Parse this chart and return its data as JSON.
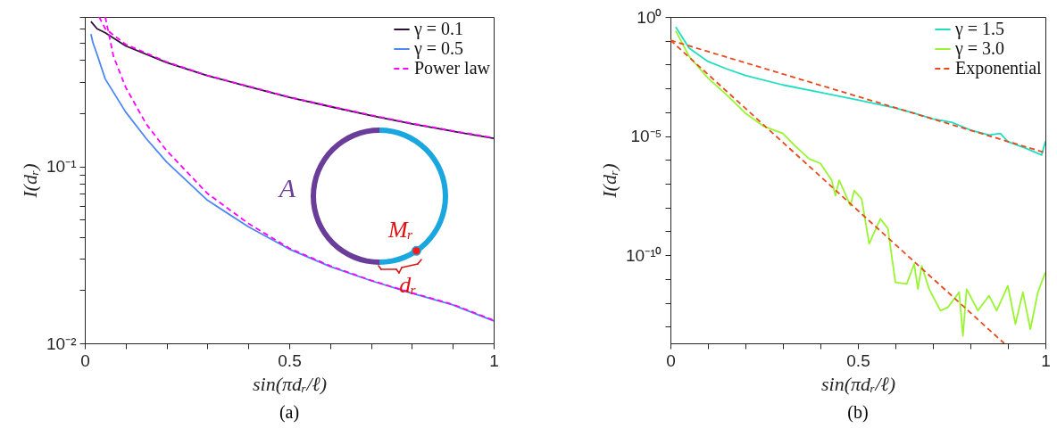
{
  "chart_data": [
    {
      "type": "line",
      "title": "(a)",
      "xlabel": "sin(πdᵣ/ℓ)",
      "ylabel": "I(dᵣ)",
      "log": true,
      "legend": "top right",
      "xlim": [
        0,
        1
      ],
      "ylim": [
        0.01,
        0.7
      ],
      "xticks": [
        0,
        {
          "value": 0.1,
          "label": null
        },
        {
          "value": 0.2,
          "label": null
        },
        {
          "value": 0.3,
          "label": null
        },
        {
          "value": 0.4,
          "label": null
        },
        0.5,
        {
          "value": 0.6,
          "label": null
        },
        {
          "value": 0.7,
          "label": null
        },
        {
          "value": 0.8,
          "label": null
        },
        {
          "value": 0.9,
          "label": null
        },
        1
      ],
      "yticks": [
        {
          "value": 0.01,
          "label": "10⁻²"
        },
        {
          "value": 0.02,
          "label": null
        },
        {
          "value": 0.03,
          "label": null
        },
        {
          "value": 0.04,
          "label": null
        },
        {
          "value": 0.05,
          "label": null
        },
        {
          "value": 0.06,
          "label": null
        },
        {
          "value": 0.07,
          "label": null
        },
        {
          "value": 0.08,
          "label": null
        },
        {
          "value": 0.09,
          "label": null
        },
        {
          "value": 0.1,
          "label": "10⁻¹"
        },
        {
          "value": 0.2,
          "label": null
        },
        {
          "value": 0.3,
          "label": null
        },
        {
          "value": 0.4,
          "label": null
        },
        {
          "value": 0.5,
          "label": null
        },
        {
          "value": 0.6,
          "label": null
        },
        {
          "value": 0.7,
          "label": null
        }
      ],
      "annotations": [
        "A",
        "Mᵣ",
        "dᵣ"
      ],
      "series": [
        {
          "name": "γ = 0.1",
          "color": "#2b1137",
          "line_style": "solid",
          "x": [
            0.015,
            0.03,
            0.05,
            0.1,
            0.2,
            0.3,
            0.4,
            0.5,
            0.6,
            0.7,
            0.8,
            0.9,
            1.0
          ],
          "values": [
            0.66,
            0.6,
            0.57,
            0.48,
            0.387,
            0.326,
            0.283,
            0.246,
            0.218,
            0.194,
            0.174,
            0.158,
            0.144
          ]
        },
        {
          "name": "γ = 0.5",
          "color": "#4d86f5",
          "line_style": "solid",
          "x": [
            0.015,
            0.02,
            0.03,
            0.05,
            0.1,
            0.15,
            0.2,
            0.3,
            0.4,
            0.5,
            0.6,
            0.7,
            0.8,
            0.9,
            1.0
          ],
          "values": [
            0.56,
            0.5,
            0.43,
            0.312,
            0.203,
            0.144,
            0.106,
            0.0644,
            0.0456,
            0.0341,
            0.0272,
            0.0226,
            0.0192,
            0.0165,
            0.0134
          ]
        },
        {
          "name": "Power law",
          "color": "#ff00ff",
          "line_style": "dashed",
          "x": [
            0.035,
            0.05,
            0.1,
            0.2,
            0.3,
            0.4,
            0.5,
            0.6,
            0.7,
            0.8,
            0.9,
            1.0
          ],
          "values": [
            0.7,
            0.6,
            0.49,
            0.39,
            0.327,
            0.284,
            0.247,
            0.219,
            0.195,
            0.175,
            0.159,
            0.145
          ]
        },
        {
          "color": "#ff00ff",
          "line_style": "dashed",
          "x": [
            0.05,
            0.07,
            0.1,
            0.15,
            0.2,
            0.3,
            0.4,
            0.5,
            0.6,
            0.7,
            0.8,
            0.9,
            1.0
          ],
          "values": [
            0.7,
            0.42,
            0.28,
            0.174,
            0.123,
            0.0703,
            0.0476,
            0.0345,
            0.0274,
            0.0227,
            0.0193,
            0.0166,
            0.0135
          ]
        }
      ]
    },
    {
      "type": "line",
      "title": "(b)",
      "xlabel": "sin(πdᵣ/ℓ)",
      "ylabel": "I(dᵣ)",
      "log": true,
      "legend": "top right",
      "xlim": [
        0,
        1
      ],
      "ylim": [
        2e-14,
        1
      ],
      "xticks": [
        0,
        {
          "value": 0.1,
          "label": null
        },
        {
          "value": 0.2,
          "label": null
        },
        {
          "value": 0.3,
          "label": null
        },
        {
          "value": 0.4,
          "label": null
        },
        0.5,
        {
          "value": 0.6,
          "label": null
        },
        {
          "value": 0.7,
          "label": null
        },
        {
          "value": 0.8,
          "label": null
        },
        {
          "value": 0.9,
          "label": null
        },
        1
      ],
      "yticks": [
        {
          "value": 1e-13,
          "label": null
        },
        {
          "value": 1e-12,
          "label": null
        },
        {
          "value": 1e-11,
          "label": null
        },
        {
          "value": 1e-10,
          "label": "10⁻¹⁰"
        },
        {
          "value": 1e-09,
          "label": null
        },
        {
          "value": 1e-08,
          "label": null
        },
        {
          "value": 1e-07,
          "label": null
        },
        {
          "value": 1e-06,
          "label": null
        },
        {
          "value": 1e-05,
          "label": "10⁻⁵"
        },
        {
          "value": 0.0001,
          "label": null
        },
        {
          "value": 0.001,
          "label": null
        },
        {
          "value": 0.01,
          "label": null
        },
        {
          "value": 0.1,
          "label": null
        },
        {
          "value": 1,
          "label": "10⁰"
        }
      ],
      "series": [
        {
          "name": "γ = 1.5",
          "color": "#1fdfc0",
          "line_style": "solid",
          "x": [
            0.014,
            0.05,
            0.1,
            0.15,
            0.2,
            0.3,
            0.4,
            0.5,
            0.6,
            0.65,
            0.7,
            0.75,
            0.8,
            0.85,
            0.88,
            0.9,
            0.95,
            0.99,
            1.0
          ],
          "values": [
            0.38,
            0.049,
            0.0135,
            0.0066,
            0.0035,
            0.0014,
            0.00068,
            0.00033,
            0.00015,
            9.1e-05,
            5.2e-05,
            3.8e-05,
            1.8e-05,
            1.1e-05,
            1.3e-05,
            5.8e-06,
            3e-06,
            1.6e-06,
            6e-06
          ]
        },
        {
          "name": "γ = 3.0",
          "color": "#99f532",
          "line_style": "solid",
          "x": [
            0.014,
            0.05,
            0.1,
            0.15,
            0.2,
            0.25,
            0.3,
            0.33,
            0.37,
            0.4,
            0.43,
            0.44,
            0.45,
            0.48,
            0.49,
            0.51,
            0.53,
            0.56,
            0.58,
            0.6,
            0.63,
            0.65,
            0.66,
            0.67,
            0.69,
            0.72,
            0.74,
            0.77,
            0.78,
            0.79,
            0.82,
            0.85,
            0.87,
            0.9,
            0.92,
            0.94,
            0.96,
            0.98,
            1.0
          ],
          "values": [
            0.26,
            0.022,
            0.0027,
            0.00054,
            9.1e-05,
            2.5e-05,
            1.3e-05,
            4.2e-06,
            1.1e-06,
            7.1e-07,
            1.4e-07,
            3.2e-08,
            1.4e-07,
            1.2e-08,
            5.2e-08,
            2.3e-08,
            3e-10,
            3.4e-09,
            1.3e-09,
            7.2e-12,
            6.2e-12,
            4.3e-11,
            3.8e-12,
            3.6e-11,
            3.8e-12,
            4.7e-13,
            6.5e-13,
            2.8e-12,
            4.1e-14,
            3.8e-12,
            4.7e-13,
            2e-12,
            4.7e-13,
            5.2e-12,
            1.3e-13,
            2.8e-12,
            7.8e-14,
            2.8e-12,
            1.9e-11
          ]
        },
        {
          "name": "Exponential",
          "color": "#e8481c",
          "line_style": "dashed",
          "x": [
            0,
            1
          ],
          "values": [
            0.105,
            2e-06
          ]
        },
        {
          "color": "#e8481c",
          "line_style": "dashed",
          "x": [
            0,
            0.89
          ],
          "values": [
            0.105,
            2e-14
          ]
        }
      ]
    }
  ]
}
